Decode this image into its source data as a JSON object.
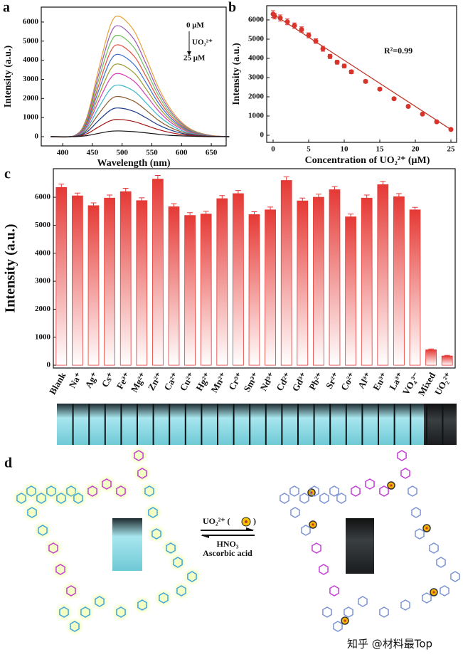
{
  "chart_data": [
    {
      "type": "line",
      "label": "a",
      "xlabel": "Wavelength (nm)",
      "ylabel": "Intensity (a.u.)",
      "annotations": [
        "0 μM",
        "UO₂²⁺",
        "25 μM"
      ],
      "x": [
        380,
        420,
        440,
        460,
        480,
        495,
        520,
        540,
        560,
        580,
        600,
        620,
        650,
        680
      ],
      "series": [
        {
          "color": "#e8a23a",
          "values": [
            0,
            60,
            950,
            3470,
            5800,
            6300,
            5540,
            4160,
            2650,
            1510,
            760,
            320,
            60,
            0
          ]
        },
        {
          "color": "#9b59b6",
          "values": [
            0,
            60,
            870,
            3190,
            5340,
            5800,
            5100,
            3830,
            2440,
            1390,
            700,
            290,
            60,
            0
          ]
        },
        {
          "color": "#6bbf59",
          "values": [
            0,
            50,
            800,
            2920,
            4880,
            5300,
            4660,
            3500,
            2230,
            1270,
            640,
            270,
            50,
            0
          ]
        },
        {
          "color": "#e74c3c",
          "values": [
            0,
            50,
            720,
            2640,
            4420,
            4800,
            4220,
            3170,
            2020,
            1150,
            580,
            240,
            50,
            0
          ]
        },
        {
          "color": "#3b6fd6",
          "values": [
            0,
            40,
            650,
            2370,
            3960,
            4300,
            3780,
            2840,
            1810,
            1030,
            520,
            220,
            40,
            0
          ]
        },
        {
          "color": "#9a9a2e",
          "values": [
            0,
            40,
            570,
            2090,
            3500,
            3800,
            3340,
            2510,
            1600,
            910,
            460,
            190,
            40,
            0
          ]
        },
        {
          "color": "#d63fb5",
          "values": [
            0,
            30,
            500,
            1820,
            3040,
            3300,
            2900,
            2180,
            1390,
            790,
            400,
            170,
            30,
            0
          ]
        },
        {
          "color": "#38b6c9",
          "values": [
            0,
            30,
            410,
            1490,
            2480,
            2700,
            2380,
            1780,
            1130,
            650,
            320,
            140,
            30,
            0
          ]
        },
        {
          "color": "#8b5a2b",
          "values": [
            0,
            20,
            320,
            1160,
            1930,
            2100,
            1850,
            1390,
            880,
            500,
            250,
            110,
            20,
            0
          ]
        },
        {
          "color": "#1f3c88",
          "values": [
            0,
            20,
            230,
            830,
            1380,
            1500,
            1320,
            990,
            630,
            360,
            180,
            80,
            20,
            0
          ]
        },
        {
          "color": "#a31515",
          "values": [
            0,
            10,
            140,
            500,
            830,
            900,
            790,
            590,
            380,
            220,
            110,
            50,
            10,
            0
          ]
        },
        {
          "color": "#111111",
          "values": [
            0,
            0,
            50,
            170,
            280,
            300,
            260,
            200,
            130,
            70,
            40,
            20,
            0,
            0
          ]
        }
      ],
      "xlim": [
        364,
        675
      ],
      "xticks": [
        400,
        450,
        500,
        550,
        600,
        650
      ],
      "ylim": [
        -485,
        6780
      ],
      "yticks": [
        0,
        1000,
        2000,
        3000,
        4000,
        5000,
        6000
      ]
    },
    {
      "type": "scatter",
      "label": "b",
      "xlabel": "Concentration of UO₂²⁺ (μM)",
      "ylabel": "Intensity (a.u.)",
      "annotations": [
        "R²=0.99"
      ],
      "color": "#d9342b",
      "line_color": "#c0392b",
      "x": [
        0,
        0.2,
        1,
        2,
        3,
        4,
        5,
        6,
        7,
        8,
        9,
        10,
        11,
        13,
        15,
        17,
        19,
        21,
        23,
        25
      ],
      "values": [
        6300,
        6200,
        6100,
        5900,
        5700,
        5500,
        5200,
        4900,
        4500,
        4100,
        3800,
        3600,
        3300,
        2800,
        2400,
        1900,
        1500,
        1100,
        700,
        300
      ],
      "errors": [
        180,
        150,
        160,
        150,
        140,
        140,
        130,
        120,
        130,
        110,
        100,
        100,
        90,
        80,
        70,
        60,
        60,
        50,
        50,
        40
      ],
      "fit": {
        "x": [
          0,
          25
        ],
        "values": [
          6300,
          300
        ]
      },
      "xlim": [
        -0.9,
        25.8
      ],
      "xticks": [
        0,
        5,
        10,
        15,
        20,
        25
      ],
      "ylim": [
        -370,
        6740
      ],
      "yticks": [
        0,
        1000,
        2000,
        3000,
        4000,
        5000,
        6000
      ]
    },
    {
      "type": "bar",
      "label": "c",
      "ylabel": "Intensity (a.u.)",
      "color": "#e53935",
      "categories": [
        "Blank",
        "Na⁺",
        "Ag⁺",
        "Cs⁺",
        "Fe³⁺",
        "Mg²⁺",
        "Zn²⁺",
        "Ca²⁺",
        "Cu²⁺",
        "Hg²⁺",
        "Mn²⁺",
        "Cr³⁺",
        "Sm³⁺",
        "Nd³⁺",
        "Cd²⁺",
        "Gd³⁺",
        "Pb²⁺",
        "Sr²⁺",
        "Co²⁺",
        "Al³⁺",
        "Eu³⁺",
        "La³⁺",
        "VO₄³⁻",
        "Mixed",
        "UO₂²⁺"
      ],
      "values": [
        6350,
        6050,
        5700,
        5970,
        6200,
        5880,
        6650,
        5660,
        5350,
        5400,
        5950,
        6130,
        5380,
        5550,
        6600,
        5870,
        6000,
        6270,
        5300,
        5970,
        6450,
        6020,
        5550,
        550,
        330
      ],
      "errors": [
        120,
        100,
        100,
        110,
        120,
        100,
        130,
        110,
        100,
        100,
        110,
        110,
        100,
        100,
        130,
        100,
        110,
        110,
        100,
        110,
        120,
        110,
        90,
        30,
        20
      ],
      "ylim": [
        -100,
        7020
      ],
      "yticks": [
        0,
        1000,
        2000,
        3000,
        4000,
        5000,
        6000
      ]
    }
  ],
  "panel_d": {
    "label": "d",
    "reagent": "UO₂²⁺ (",
    "reverse": [
      "HNO₃",
      "Ascorbic acid"
    ]
  },
  "watermark": "知乎 @材料最Top"
}
